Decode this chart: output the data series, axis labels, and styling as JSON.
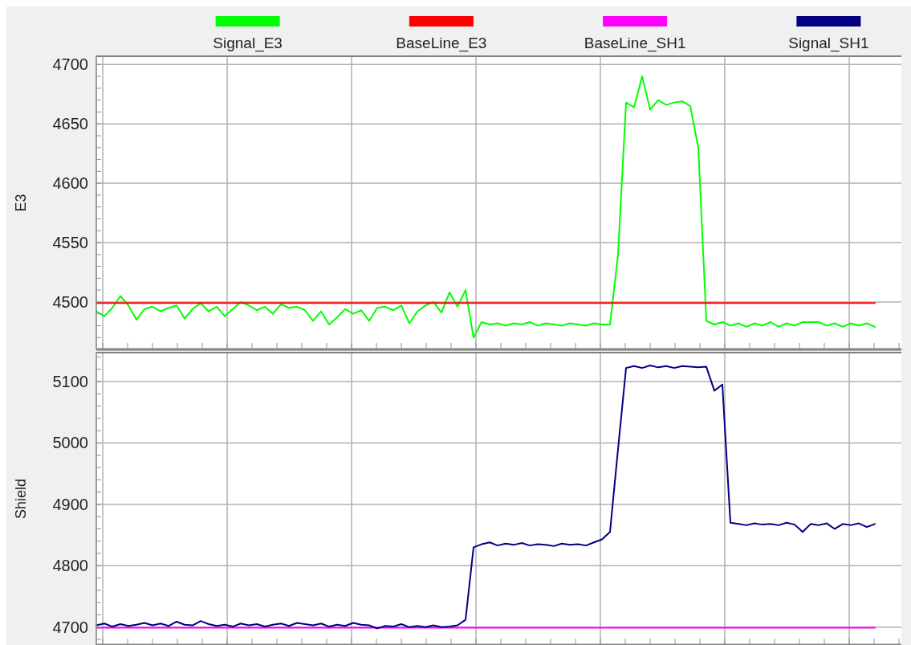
{
  "chart_data": [
    {
      "type": "line",
      "ylabel": "E3",
      "ylim": [
        4460,
        4707
      ],
      "yticks": [
        4500,
        4550,
        4600,
        4650,
        4700
      ],
      "grid": true,
      "legend": "top",
      "tick_labels": "y",
      "categories": [
        null,
        null,
        null,
        null,
        null,
        null,
        null,
        null,
        null,
        null,
        null,
        null,
        null,
        null,
        null,
        null,
        null,
        null,
        null,
        null,
        null,
        null,
        null,
        null,
        null,
        null,
        null,
        null,
        null,
        null,
        null,
        null,
        null,
        null,
        null,
        null,
        null,
        null,
        null,
        null,
        null,
        null,
        null,
        null,
        null,
        null,
        null,
        null,
        null,
        null,
        null,
        null,
        null,
        null,
        null,
        null,
        null,
        null,
        null,
        null,
        null,
        null,
        null,
        null,
        null,
        null,
        null,
        null,
        null,
        null,
        null,
        null,
        null,
        null,
        null,
        null,
        null,
        null,
        null,
        null,
        null,
        null,
        null,
        null,
        null,
        null,
        null,
        null,
        null,
        null,
        null,
        null,
        null,
        null,
        null,
        null,
        null,
        null
      ],
      "series": [
        {
          "name": "Signal_E3",
          "color": "#00ff00",
          "values": [
            4492,
            4488,
            4495,
            4505,
            4497,
            4485,
            4494,
            4496,
            4492,
            4495,
            4497,
            4486,
            4494,
            4499,
            4492,
            4496,
            4488,
            4494,
            4500,
            4497,
            4493,
            4496,
            4490,
            4498,
            4495,
            4496,
            4493,
            4484,
            4492,
            4481,
            4487,
            4494,
            4490,
            4493,
            4484,
            4495,
            4496,
            4493,
            4497,
            4482,
            4492,
            4497,
            4500,
            4491,
            4508,
            4496,
            4510,
            4470,
            4483,
            4481,
            4482,
            4480,
            4482,
            4481,
            4483,
            4480,
            4482,
            4481,
            4480,
            4482,
            4481,
            4480,
            4482,
            4481,
            4481,
            4540,
            4668,
            4664,
            4690,
            4662,
            4670,
            4666,
            4668,
            4669,
            4665,
            4630,
            4484,
            4481,
            4483,
            4480,
            4482,
            4479,
            4482,
            4480,
            4483,
            4479,
            4482,
            4480,
            4483,
            4483,
            4483,
            4480,
            4482,
            4479,
            4482,
            4480,
            4482,
            4479
          ]
        },
        {
          "name": "BaseLine_E3",
          "color": "#ff0000",
          "values": [
            4499,
            4499,
            4499,
            4499,
            4499,
            4499,
            4499,
            4499,
            4499,
            4499,
            4499,
            4499,
            4499,
            4499,
            4499,
            4499,
            4499,
            4499,
            4499,
            4499,
            4499,
            4499,
            4499,
            4499,
            4499,
            4499,
            4499,
            4499,
            4499,
            4499,
            4499,
            4499,
            4499,
            4499,
            4499,
            4499,
            4499,
            4499,
            4499,
            4499,
            4499,
            4499,
            4499,
            4499,
            4499,
            4499,
            4499,
            4499,
            4499,
            4499,
            4499,
            4499,
            4499,
            4499,
            4499,
            4499,
            4499,
            4499,
            4499,
            4499,
            4499,
            4499,
            4499,
            4499,
            4499,
            4499,
            4499,
            4499,
            4499,
            4499,
            4499,
            4499,
            4499,
            4499,
            4499,
            4499,
            4499,
            4499,
            4499,
            4499,
            4499,
            4499,
            4499,
            4499,
            4499,
            4499,
            4499,
            4499,
            4499,
            4499,
            4499,
            4499,
            4499,
            4499,
            4499,
            4499,
            4499,
            4499
          ]
        }
      ]
    },
    {
      "type": "line",
      "ylabel": "Shield",
      "ylim": [
        4671,
        5147
      ],
      "yticks": [
        4700,
        4800,
        4900,
        5000,
        5100
      ],
      "grid": true,
      "legend": "top",
      "tick_labels": "y",
      "categories": [
        null,
        null,
        null,
        null,
        null,
        null,
        null,
        null,
        null,
        null,
        null,
        null,
        null,
        null,
        null,
        null,
        null,
        null,
        null,
        null,
        null,
        null,
        null,
        null,
        null,
        null,
        null,
        null,
        null,
        null,
        null,
        null,
        null,
        null,
        null,
        null,
        null,
        null,
        null,
        null,
        null,
        null,
        null,
        null,
        null,
        null,
        null,
        null,
        null,
        null,
        null,
        null,
        null,
        null,
        null,
        null,
        null,
        null,
        null,
        null,
        null,
        null,
        null,
        null,
        null,
        null,
        null,
        null,
        null,
        null,
        null,
        null,
        null,
        null,
        null,
        null,
        null,
        null,
        null,
        null,
        null,
        null,
        null,
        null,
        null,
        null,
        null,
        null,
        null,
        null,
        null,
        null,
        null,
        null,
        null,
        null,
        null,
        null
      ],
      "series": [
        {
          "name": "BaseLine_SH1",
          "color": "#ff00ff",
          "values": [
            4699,
            4699,
            4699,
            4699,
            4699,
            4699,
            4699,
            4699,
            4699,
            4699,
            4699,
            4699,
            4699,
            4699,
            4699,
            4699,
            4699,
            4699,
            4699,
            4699,
            4699,
            4699,
            4699,
            4699,
            4699,
            4699,
            4699,
            4699,
            4699,
            4699,
            4699,
            4699,
            4699,
            4699,
            4699,
            4699,
            4699,
            4699,
            4699,
            4699,
            4699,
            4699,
            4699,
            4699,
            4699,
            4699,
            4699,
            4699,
            4699,
            4699,
            4699,
            4699,
            4699,
            4699,
            4699,
            4699,
            4699,
            4699,
            4699,
            4699,
            4699,
            4699,
            4699,
            4699,
            4699,
            4699,
            4699,
            4699,
            4699,
            4699,
            4699,
            4699,
            4699,
            4699,
            4699,
            4699,
            4699,
            4699,
            4699,
            4699,
            4699,
            4699,
            4699,
            4699,
            4699,
            4699,
            4699,
            4699,
            4699,
            4699,
            4699,
            4699,
            4699,
            4699,
            4699,
            4699,
            4699,
            4699
          ]
        },
        {
          "name": "Signal_SH1",
          "color": "#000080",
          "values": [
            4703,
            4706,
            4701,
            4705,
            4702,
            4704,
            4707,
            4703,
            4706,
            4702,
            4709,
            4704,
            4703,
            4710,
            4705,
            4702,
            4704,
            4701,
            4706,
            4703,
            4705,
            4701,
            4704,
            4706,
            4702,
            4707,
            4705,
            4703,
            4706,
            4701,
            4704,
            4702,
            4707,
            4704,
            4703,
            4698,
            4702,
            4701,
            4705,
            4700,
            4702,
            4700,
            4703,
            4700,
            4701,
            4703,
            4712,
            4830,
            4835,
            4838,
            4833,
            4836,
            4834,
            4837,
            4833,
            4835,
            4834,
            4832,
            4836,
            4834,
            4835,
            4833,
            4838,
            4843,
            4855,
            4990,
            5122,
            5125,
            5122,
            5126,
            5123,
            5125,
            5122,
            5125,
            5124,
            5123,
            5124,
            5085,
            5095,
            4870,
            4868,
            4866,
            4869,
            4867,
            4868,
            4866,
            4870,
            4867,
            4855,
            4868,
            4866,
            4869,
            4860,
            4868,
            4866,
            4869,
            4863,
            4868
          ]
        }
      ]
    }
  ]
}
